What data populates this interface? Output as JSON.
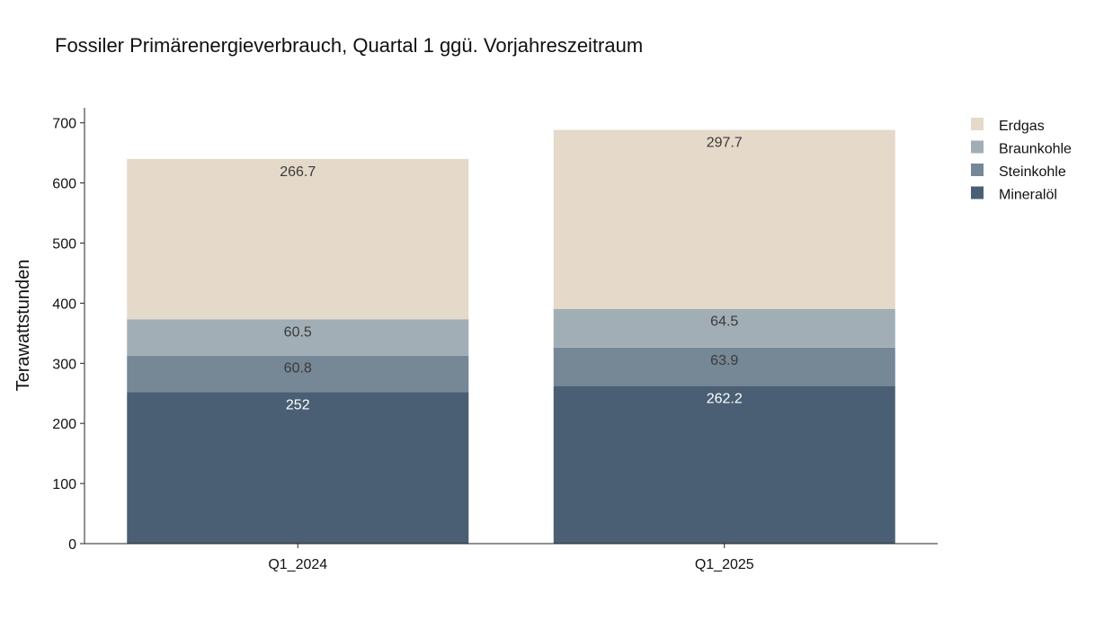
{
  "chart_data": {
    "type": "bar",
    "stacked": true,
    "title": "Fossiler Primärenergieverbrauch, Quartal 1 ggü. Vorjahreszeitraum",
    "xlabel": "",
    "ylabel": "Terawattstunden",
    "categories": [
      "Q1_2024",
      "Q1_2025"
    ],
    "ylim": [
      0,
      725
    ],
    "yticks": [
      0,
      100,
      200,
      300,
      400,
      500,
      600,
      700
    ],
    "grid": false,
    "legend_position": "right",
    "series": [
      {
        "name": "Mineralöl",
        "values": [
          252,
          262.2
        ],
        "labels": [
          "252",
          "262.2"
        ],
        "color": "#4a5f74",
        "label_color": "#ffffff"
      },
      {
        "name": "Steinkohle",
        "values": [
          60.8,
          63.9
        ],
        "labels": [
          "60.8",
          "63.9"
        ],
        "color": "#768796",
        "label_color": "#3a3a3a"
      },
      {
        "name": "Braunkohle",
        "values": [
          60.5,
          64.5
        ],
        "labels": [
          "60.5",
          "64.5"
        ],
        "color": "#a2aeb6",
        "label_color": "#3a3a3a"
      },
      {
        "name": "Erdgas",
        "values": [
          266.7,
          297.7
        ],
        "labels": [
          "266.7",
          "297.7"
        ],
        "color": "#e5d9ca",
        "label_color": "#3a3a3a"
      }
    ],
    "legend_order": [
      "Erdgas",
      "Braunkohle",
      "Steinkohle",
      "Mineralöl"
    ]
  }
}
